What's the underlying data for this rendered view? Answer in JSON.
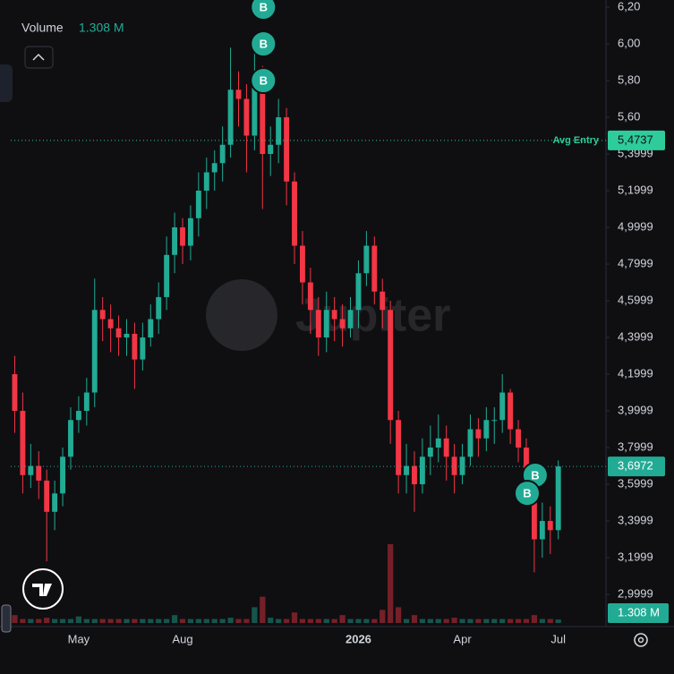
{
  "chart_data": {
    "type": "candlestick",
    "volume_title": "Volume",
    "watermark": "Jupiter",
    "categories": [
      null,
      null,
      null,
      null,
      null,
      null,
      null,
      null,
      "May",
      null,
      null,
      null,
      null,
      null,
      null,
      null,
      null,
      null,
      null,
      null,
      null,
      "Aug",
      null,
      null,
      null,
      null,
      null,
      null,
      null,
      null,
      null,
      null,
      null,
      null,
      null,
      null,
      null,
      null,
      null,
      null,
      null,
      null,
      null,
      "2026",
      null,
      null,
      null,
      null,
      null,
      null,
      null,
      null,
      null,
      null,
      null,
      null,
      "Apr",
      null,
      null,
      null,
      null,
      null,
      null,
      null,
      null,
      null,
      null,
      null,
      "Jul"
    ],
    "open": [
      4.2,
      4.0,
      3.65,
      3.7,
      3.62,
      3.45,
      3.55,
      3.75,
      3.95,
      4.0,
      4.1,
      4.55,
      4.5,
      4.45,
      4.4,
      4.42,
      4.28,
      4.4,
      4.5,
      4.62,
      4.85,
      5.0,
      4.9,
      5.05,
      5.2,
      5.3,
      5.35,
      5.45,
      5.75,
      5.7,
      5.5,
      5.8,
      5.4,
      5.45,
      5.6,
      5.25,
      4.9,
      4.7,
      4.55,
      4.4,
      4.55,
      4.5,
      4.45,
      4.55,
      4.75,
      4.9,
      4.65,
      4.55,
      3.95,
      3.65,
      3.7,
      3.6,
      3.75,
      3.8,
      3.85,
      3.75,
      3.65,
      3.75,
      3.9,
      3.85,
      3.95,
      3.95,
      4.1,
      3.9,
      3.8,
      3.65,
      3.3,
      3.4,
      3.35
    ],
    "high": [
      4.3,
      4.1,
      3.82,
      3.78,
      3.68,
      3.62,
      3.8,
      4.02,
      4.08,
      4.18,
      4.72,
      4.62,
      4.58,
      4.52,
      4.5,
      4.48,
      4.48,
      4.58,
      4.7,
      4.95,
      5.08,
      5.05,
      5.12,
      5.3,
      5.38,
      5.42,
      5.55,
      5.98,
      5.85,
      5.78,
      5.95,
      5.88,
      5.55,
      5.7,
      5.65,
      5.3,
      4.98,
      4.78,
      4.62,
      4.65,
      4.62,
      4.58,
      4.62,
      4.82,
      4.98,
      4.95,
      4.72,
      4.6,
      4.0,
      3.82,
      3.78,
      3.85,
      3.92,
      3.98,
      3.92,
      3.82,
      3.82,
      3.98,
      3.96,
      4.02,
      4.02,
      4.2,
      4.12,
      3.95,
      3.85,
      3.7,
      3.5,
      3.48,
      3.73
    ],
    "low": [
      3.88,
      3.55,
      3.58,
      3.52,
      3.18,
      3.35,
      3.48,
      3.68,
      3.88,
      3.92,
      4.02,
      4.38,
      4.32,
      4.3,
      4.3,
      4.12,
      4.22,
      4.35,
      4.42,
      4.55,
      4.75,
      4.8,
      4.82,
      4.95,
      5.1,
      5.2,
      5.25,
      5.38,
      5.55,
      5.3,
      5.42,
      5.1,
      5.28,
      5.35,
      5.12,
      4.8,
      4.58,
      4.42,
      4.3,
      4.32,
      4.38,
      4.35,
      4.4,
      4.45,
      4.68,
      4.58,
      4.45,
      3.82,
      3.55,
      3.55,
      3.45,
      3.55,
      3.65,
      3.72,
      3.62,
      3.55,
      3.6,
      3.7,
      3.75,
      3.78,
      3.82,
      3.88,
      3.82,
      3.72,
      3.55,
      3.12,
      3.2,
      3.22,
      3.3
    ],
    "close": [
      4.0,
      3.65,
      3.7,
      3.62,
      3.45,
      3.55,
      3.75,
      3.95,
      4.0,
      4.1,
      4.55,
      4.5,
      4.45,
      4.4,
      4.42,
      4.28,
      4.4,
      4.5,
      4.62,
      4.85,
      5.0,
      4.9,
      5.05,
      5.2,
      5.3,
      5.35,
      5.45,
      5.75,
      5.7,
      5.5,
      5.8,
      5.4,
      5.45,
      5.6,
      5.25,
      4.9,
      4.7,
      4.55,
      4.4,
      4.55,
      4.5,
      4.45,
      4.55,
      4.75,
      4.9,
      4.65,
      4.55,
      3.95,
      3.65,
      3.7,
      3.6,
      3.75,
      3.8,
      3.85,
      3.75,
      3.65,
      3.75,
      3.9,
      3.85,
      3.95,
      3.95,
      4.1,
      3.9,
      3.8,
      3.65,
      3.3,
      3.4,
      3.35,
      3.6972
    ],
    "close_labels_last": "3,6972",
    "volume": [
      3,
      1.5,
      1.5,
      1.5,
      2,
      1.5,
      1.5,
      1.5,
      2.5,
      1.5,
      1.5,
      1.5,
      1.5,
      1.5,
      1.5,
      1.5,
      1.5,
      1.5,
      1.5,
      1.5,
      3,
      1.5,
      1.5,
      1.5,
      1.5,
      1.5,
      1.5,
      2,
      1.5,
      1.5,
      6,
      10,
      2,
      1.5,
      1.5,
      4,
      1.5,
      1.5,
      1.5,
      1.5,
      1.5,
      3,
      1.5,
      1.5,
      1.5,
      1.5,
      5,
      30,
      6,
      1.5,
      3,
      1.5,
      1.5,
      1.5,
      1.5,
      2,
      1.5,
      1.5,
      1.5,
      1.5,
      1.5,
      1.5,
      1.5,
      1.5,
      1.5,
      3,
      1.5,
      1.5,
      1.308
    ],
    "volume_last_label": "1.308 M",
    "up_color": "#22ab94",
    "down_color": "#f23645",
    "avg_entry": {
      "label": "Avg Entry",
      "value": 5.4737,
      "value_label": "5,4737"
    },
    "trades": [
      {
        "label": "B",
        "index": 31,
        "price": 6.2
      },
      {
        "label": "B",
        "index": 31,
        "price": 6.0
      },
      {
        "label": "B",
        "index": 31,
        "price": 5.8
      },
      {
        "label": "B",
        "index": 65,
        "price": 3.649
      },
      {
        "label": "B",
        "index": 64,
        "price": 3.551
      }
    ],
    "ylim": [
      2.849,
      6.239
    ],
    "yticks": [
      {
        "value": 6.2,
        "label": "6,20"
      },
      {
        "value": 6.0,
        "label": "6,00"
      },
      {
        "value": 5.8,
        "label": "5,80"
      },
      {
        "value": 5.6,
        "label": "5,60"
      },
      {
        "value": 5.3999,
        "label": "5,3999"
      },
      {
        "value": 5.1999,
        "label": "5,1999"
      },
      {
        "value": 4.9999,
        "label": "4,9999"
      },
      {
        "value": 4.7999,
        "label": "4,7999"
      },
      {
        "value": 4.5999,
        "label": "4,5999"
      },
      {
        "value": 4.3999,
        "label": "4,3999"
      },
      {
        "value": 4.1999,
        "label": "4,1999"
      },
      {
        "value": 3.9999,
        "label": "3,9999"
      },
      {
        "value": 3.7999,
        "label": "3,7999"
      },
      {
        "value": 3.5999,
        "label": "3,5999"
      },
      {
        "value": 3.3999,
        "label": "3,3999"
      },
      {
        "value": 3.1999,
        "label": "3,1999"
      },
      {
        "value": 2.9999,
        "label": "2,9999"
      }
    ]
  }
}
